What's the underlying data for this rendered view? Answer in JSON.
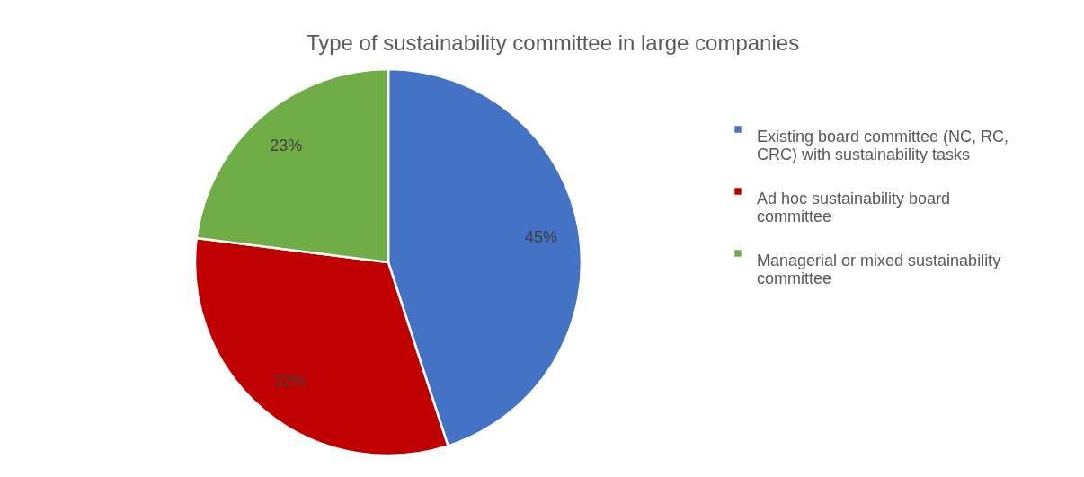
{
  "chart_data": {
    "type": "pie",
    "title": "Type of sustainability committee in large companies",
    "categories": [
      "Existing board committee (NC, RC, CRC) with sustainability tasks",
      "Ad hoc sustainability board committee",
      "Managerial or mixed sustainability committee"
    ],
    "values": [
      45,
      32,
      23
    ],
    "colors": [
      "#4472c4",
      "#c00000",
      "#70ad47"
    ],
    "value_labels": [
      "45%",
      "32%",
      "23%"
    ],
    "legend": "right"
  }
}
